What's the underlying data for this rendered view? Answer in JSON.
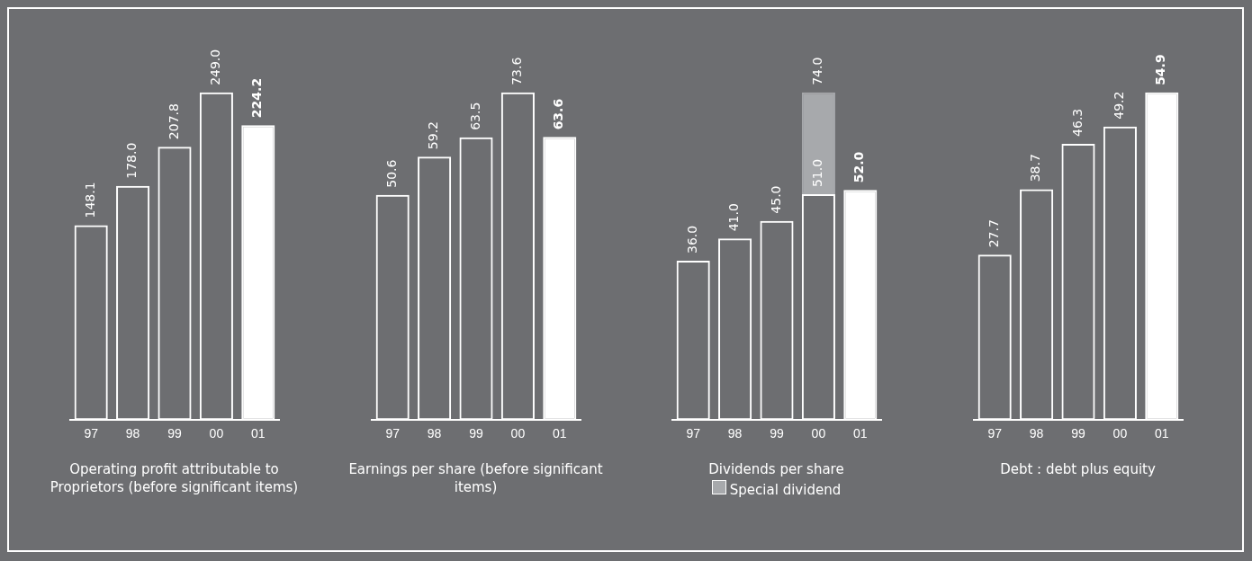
{
  "chart_data": [
    {
      "type": "bar",
      "xlabel": "Operating profit attributable to Proprietors (before significant items)",
      "categories": [
        "97",
        "98",
        "99",
        "00",
        "01"
      ],
      "tick_labels": "x",
      "grid": false,
      "legend": false,
      "series": [
        {
          "color": "#ffffff",
          "values": [
            148.1,
            178.0,
            207.8,
            249.0,
            224.2
          ],
          "value_labels": [
            "148.1",
            "178.0",
            "207.8",
            "249.0",
            "224.2"
          ]
        }
      ]
    },
    {
      "type": "bar",
      "xlabel": "Earnings per share (before significant items)",
      "categories": [
        "97",
        "98",
        "99",
        "00",
        "01"
      ],
      "tick_labels": "x",
      "grid": false,
      "legend": false,
      "series": [
        {
          "color": "#ffffff",
          "values": [
            50.6,
            59.2,
            63.5,
            73.6,
            63.6
          ],
          "value_labels": [
            "50.6",
            "59.2",
            "63.5",
            "73.6",
            "63.6"
          ]
        }
      ]
    },
    {
      "type": "bar",
      "xlabel": "Dividends per share",
      "categories": [
        "97",
        "98",
        "99",
        "00",
        "01"
      ],
      "tick_labels": "x",
      "grid": false,
      "legend": "bottom",
      "stacked": true,
      "totals": [
        "36.0",
        "41.0",
        "45.0",
        "74.0",
        "52.0"
      ],
      "series": [
        {
          "color": "#ffffff",
          "values": [
            36.0,
            41.0,
            45.0,
            51.0,
            52.0
          ],
          "value_labels": [
            null,
            null,
            null,
            "51.0",
            null
          ]
        },
        {
          "name": "Special dividend",
          "color": "#a7a9ac",
          "values": [
            null,
            null,
            null,
            23.0,
            null
          ]
        }
      ]
    },
    {
      "type": "bar",
      "xlabel": "Debt : debt plus equity",
      "categories": [
        "97",
        "98",
        "99",
        "00",
        "01"
      ],
      "tick_labels": "x",
      "grid": false,
      "legend": false,
      "series": [
        {
          "color": "#ffffff",
          "values": [
            27.7,
            38.7,
            46.3,
            49.2,
            54.9
          ],
          "value_labels": [
            "27.7",
            "38.7",
            "46.3",
            "49.2",
            "54.9"
          ]
        }
      ]
    }
  ]
}
